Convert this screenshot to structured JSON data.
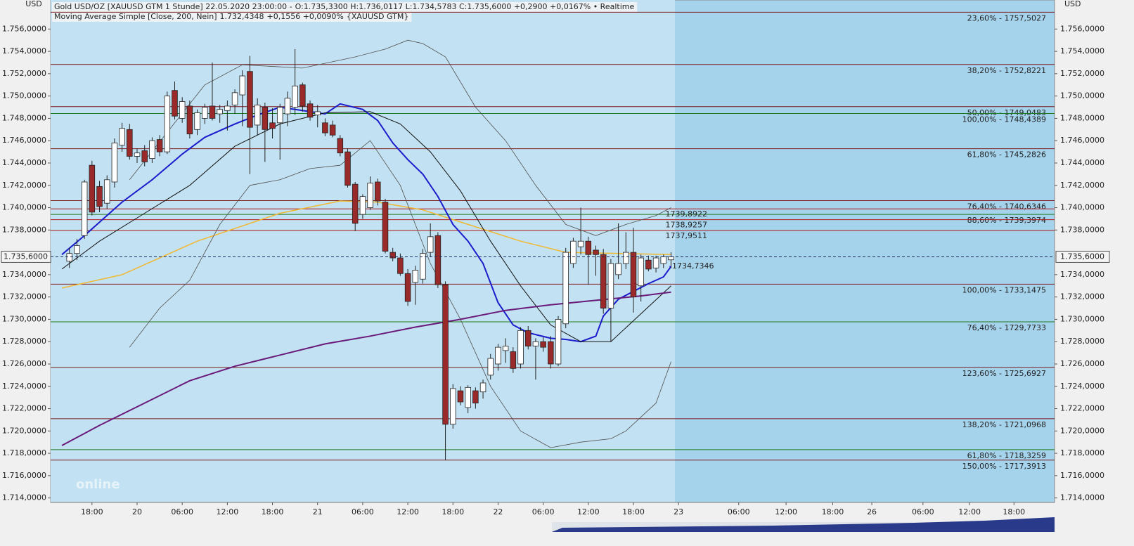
{
  "chart_data": {
    "type": "candlestick",
    "currency": "USD",
    "header": {
      "line1": [
        {
          "text": "Gold USD/OZ [XAUUSD GTM 1 Stunde] 22.05.2020 23:00:00 -",
          "color": "#202020"
        },
        {
          "text": "O:1.735,3300 H:1.736,0117 L:1.734,5783 C:1.735,6000 +0,2900 +0,0167% • Realtime",
          "color": "#1a8f1a"
        }
      ],
      "line2": [
        {
          "text": "Moving Average Simple [Close, 200, Nein]",
          "color": "#202020"
        },
        {
          "text": "1.732,4348",
          "color": "#6a1a7a"
        },
        {
          "text": "+0,1556 +0,0090%",
          "color": "#1a8f1a"
        },
        {
          "text": "{XAUUSD GTM}",
          "color": "#6a1a7a"
        }
      ]
    },
    "logo": "online",
    "xlim": [
      -1.5,
      132
    ],
    "ylim": [
      1713.6,
      1758.6
    ],
    "yticks": [
      {
        "value": 1714,
        "label": "1.714,0000"
      },
      {
        "value": 1716,
        "label": "1.716,0000"
      },
      {
        "value": 1718,
        "label": "1.718,0000"
      },
      {
        "value": 1720,
        "label": "1.720,0000"
      },
      {
        "value": 1722,
        "label": "1.722,0000"
      },
      {
        "value": 1724,
        "label": "1.724,0000"
      },
      {
        "value": 1726,
        "label": "1.726,0000"
      },
      {
        "value": 1728,
        "label": "1.728,0000"
      },
      {
        "value": 1730,
        "label": "1.730,0000"
      },
      {
        "value": 1732,
        "label": "1.732,0000"
      },
      {
        "value": 1734,
        "label": "1.734,0000"
      },
      {
        "value": 1738,
        "label": "1.738,0000"
      },
      {
        "value": 1740,
        "label": "1.740,0000"
      },
      {
        "value": 1742,
        "label": "1.742,0000"
      },
      {
        "value": 1744,
        "label": "1.744,0000"
      },
      {
        "value": 1746,
        "label": "1.746,0000"
      },
      {
        "value": 1748,
        "label": "1.748,0000"
      },
      {
        "value": 1750,
        "label": "1.750,0000"
      },
      {
        "value": 1752,
        "label": "1.752,0000"
      },
      {
        "value": 1754,
        "label": "1.754,0000"
      },
      {
        "value": 1756,
        "label": "1.756,0000"
      }
    ],
    "xticks": [
      {
        "value": 4,
        "label": "18:00"
      },
      {
        "value": 10,
        "label": "20"
      },
      {
        "value": 16,
        "label": "06:00"
      },
      {
        "value": 22,
        "label": "12:00"
      },
      {
        "value": 28,
        "label": "18:00"
      },
      {
        "value": 34,
        "label": "21"
      },
      {
        "value": 40,
        "label": "06:00"
      },
      {
        "value": 46,
        "label": "12:00"
      },
      {
        "value": 52,
        "label": "18:00"
      },
      {
        "value": 58,
        "label": "22"
      },
      {
        "value": 64,
        "label": "06:00"
      },
      {
        "value": 70,
        "label": "12:00"
      },
      {
        "value": 76,
        "label": "18:00"
      },
      {
        "value": 82,
        "label": "23"
      },
      {
        "value": 90,
        "label": "06:00"
      },
      {
        "value": 96.3,
        "label": "12:00"
      },
      {
        "value": 102.5,
        "label": "18:00"
      },
      {
        "value": 107.7,
        "label": "26"
      },
      {
        "value": 114.5,
        "label": "06:00"
      },
      {
        "value": 120.7,
        "label": "12:00"
      },
      {
        "value": 126.6,
        "label": "18:00"
      }
    ],
    "up_color": "#ffffff",
    "down_color": "#9a2a2a",
    "x": [
      1,
      2,
      3,
      4,
      5,
      6,
      7,
      8,
      9,
      10,
      11,
      12,
      13,
      14,
      15,
      16,
      17,
      18,
      19,
      20,
      21,
      22,
      23,
      24,
      25,
      26,
      27,
      28,
      29,
      30,
      31,
      32,
      33,
      34,
      35,
      36,
      37,
      38,
      39,
      40,
      41,
      42,
      43,
      44,
      45,
      46,
      47,
      48,
      49,
      50,
      51,
      52,
      53,
      54,
      55,
      56,
      57,
      58,
      59,
      60,
      61,
      62,
      63,
      64,
      65,
      66,
      67,
      68,
      69,
      70,
      71,
      72,
      73,
      74,
      75,
      76,
      77,
      78,
      79,
      80,
      81
    ],
    "open": [
      1735.2,
      1735.9,
      1737.5,
      1743.8,
      1741.9,
      1740.4,
      1742.3,
      1745.6,
      1747.0,
      1744.6,
      1745.1,
      1744.4,
      1746.1,
      1745.0,
      1750.5,
      1748.0,
      1749.1,
      1747.0,
      1748.0,
      1749.1,
      1748.4,
      1748.7,
      1749.2,
      1750.1,
      1752.2,
      1747.4,
      1749.0,
      1747.6,
      1747.6,
      1748.4,
      1749.0,
      1751.0,
      1749.3,
      1748.3,
      1747.6,
      1747.4,
      1746.2,
      1745.0,
      1742.1,
      1739.4,
      1740.0,
      1742.3,
      1740.5,
      1736.0,
      1735.5,
      1734.1,
      1733.3,
      1733.6,
      1736.0,
      1737.5,
      1733.1,
      1720.6,
      1723.6,
      1722.1,
      1723.6,
      1723.5,
      1725.0,
      1726.0,
      1727.2,
      1727.1,
      1726.0,
      1729.0,
      1727.6,
      1728.0,
      1728.0,
      1726.0,
      1729.6,
      1735.0,
      1736.5,
      1737.0,
      1736.2,
      1735.8,
      1731.0,
      1734.0,
      1735.0,
      1736.0,
      1733.0,
      1735.3,
      1734.6,
      1735.0,
      1735.33
    ],
    "high": [
      1736.4,
      1737.2,
      1742.5,
      1744.2,
      1742.4,
      1742.9,
      1746.2,
      1747.6,
      1747.5,
      1745.3,
      1745.6,
      1746.3,
      1746.5,
      1750.4,
      1751.3,
      1749.9,
      1749.6,
      1748.8,
      1749.3,
      1753.0,
      1749.2,
      1749.6,
      1750.6,
      1752.3,
      1753.6,
      1749.8,
      1749.4,
      1748.9,
      1749.3,
      1750.4,
      1754.2,
      1751.2,
      1749.6,
      1749.2,
      1748.0,
      1747.8,
      1746.5,
      1745.3,
      1742.3,
      1741.2,
      1742.8,
      1742.6,
      1740.8,
      1736.4,
      1735.9,
      1734.5,
      1734.8,
      1736.3,
      1738.6,
      1737.8,
      1733.4,
      1724.2,
      1724.0,
      1724.1,
      1723.9,
      1724.6,
      1726.9,
      1727.8,
      1728.3,
      1727.5,
      1729.3,
      1729.4,
      1728.3,
      1728.4,
      1728.5,
      1730.3,
      1736.4,
      1737.3,
      1740.0,
      1737.4,
      1736.6,
      1736.3,
      1735.4,
      1738.6,
      1737.8,
      1738.2,
      1735.8,
      1735.7,
      1735.7,
      1735.8,
      1736.0117
    ],
    "low": [
      1734.6,
      1735.3,
      1737.2,
      1739.3,
      1739.6,
      1739.9,
      1741.8,
      1745.0,
      1744.3,
      1744.0,
      1743.7,
      1744.0,
      1744.6,
      1744.8,
      1747.9,
      1747.6,
      1746.2,
      1746.5,
      1747.5,
      1747.8,
      1747.6,
      1746.9,
      1748.4,
      1747.3,
      1743.0,
      1746.5,
      1744.1,
      1746.2,
      1744.3,
      1747.3,
      1748.3,
      1748.6,
      1747.8,
      1747.2,
      1746.4,
      1746.3,
      1744.6,
      1741.8,
      1737.9,
      1739.0,
      1739.8,
      1740.2,
      1735.9,
      1735.2,
      1733.9,
      1731.2,
      1731.3,
      1733.2,
      1735.6,
      1732.8,
      1717.4,
      1720.2,
      1722.3,
      1721.6,
      1722.0,
      1722.9,
      1724.6,
      1725.4,
      1726.1,
      1725.2,
      1725.6,
      1727.3,
      1724.6,
      1727.1,
      1725.6,
      1725.8,
      1729.2,
      1734.6,
      1735.8,
      1733.1,
      1733.9,
      1730.5,
      1728.0,
      1733.6,
      1734.5,
      1730.6,
      1731.6,
      1734.3,
      1734.2,
      1734.6,
      1734.5783
    ],
    "close": [
      1735.9,
      1736.6,
      1742.3,
      1739.6,
      1740.1,
      1742.5,
      1745.8,
      1747.1,
      1744.6,
      1744.9,
      1744.1,
      1746.0,
      1745.0,
      1750.0,
      1748.2,
      1749.5,
      1746.6,
      1748.5,
      1749.0,
      1748.0,
      1748.8,
      1749.1,
      1750.3,
      1751.8,
      1747.2,
      1749.2,
      1747.0,
      1747.1,
      1749.0,
      1749.8,
      1750.9,
      1749.1,
      1748.1,
      1748.6,
      1746.7,
      1746.5,
      1744.9,
      1742.0,
      1738.6,
      1741.0,
      1742.2,
      1740.6,
      1736.1,
      1735.5,
      1734.1,
      1731.6,
      1734.4,
      1735.9,
      1737.4,
      1733.1,
      1720.6,
      1723.8,
      1722.6,
      1723.9,
      1722.5,
      1724.3,
      1726.5,
      1727.5,
      1727.6,
      1725.6,
      1729.0,
      1727.6,
      1728.0,
      1727.5,
      1726.0,
      1730.0,
      1736.0,
      1737.0,
      1737.0,
      1735.8,
      1735.8,
      1731.0,
      1735.0,
      1735.0,
      1736.0,
      1732.0,
      1735.5,
      1734.5,
      1735.5,
      1735.6,
      1735.6
    ],
    "lines": [
      {
        "color": "#f2b830",
        "width": 1.5,
        "x": [
          0,
          8,
          18,
          29,
          37,
          42,
          48,
          54,
          61,
          67,
          81
        ],
        "values": [
          1732.8,
          1734.0,
          1737.0,
          1739.5,
          1740.6,
          1740.5,
          1739.8,
          1738.5,
          1737.0,
          1736.0,
          1735.8
        ]
      },
      {
        "color": "#1c1ccc",
        "width": 2,
        "x": [
          0,
          3,
          8,
          12,
          16,
          19,
          23,
          26,
          29,
          33,
          35,
          37,
          40,
          42,
          44,
          46,
          48,
          50,
          52,
          54,
          56,
          58,
          60,
          62,
          65,
          67,
          69,
          71,
          72,
          74,
          76,
          78,
          80,
          81
        ],
        "values": [
          1735.8,
          1737.5,
          1740.5,
          1742.5,
          1744.8,
          1746.3,
          1747.5,
          1748.3,
          1749.0,
          1748.6,
          1748.4,
          1749.3,
          1748.8,
          1747.8,
          1745.8,
          1744.3,
          1743.0,
          1741.0,
          1738.5,
          1737.0,
          1735.0,
          1731.5,
          1729.5,
          1728.8,
          1728.3,
          1728.2,
          1728.0,
          1728.5,
          1730.3,
          1731.8,
          1732.5,
          1733.2,
          1733.8,
          1734.7346
        ]
      },
      {
        "color": "#111111",
        "width": 1,
        "x": [
          0,
          5,
          11,
          17,
          23,
          29,
          35,
          41,
          45,
          49,
          53,
          57,
          61,
          65,
          69,
          73,
          77,
          81
        ],
        "values": [
          1734.5,
          1737.0,
          1739.5,
          1742.0,
          1745.5,
          1747.5,
          1748.5,
          1748.6,
          1747.5,
          1745.0,
          1741.5,
          1737.0,
          1733.0,
          1729.5,
          1728.0,
          1728.0,
          1730.5,
          1733.0
        ]
      },
      {
        "color": "#6a1a7a",
        "width": 2,
        "x": [
          0,
          5,
          11,
          17,
          23,
          29,
          35,
          41,
          47,
          53,
          59,
          65,
          71,
          77,
          81
        ],
        "values": [
          1718.7,
          1720.5,
          1722.5,
          1724.5,
          1725.8,
          1726.8,
          1727.8,
          1728.5,
          1729.3,
          1730.0,
          1730.8,
          1731.3,
          1731.7,
          1732.1,
          1732.4348
        ]
      },
      {
        "color": "#505050",
        "width": 0.8,
        "x": [
          9,
          19,
          24,
          32,
          39,
          43,
          46,
          48,
          51,
          55,
          59,
          63,
          67,
          71,
          75,
          79,
          81
        ],
        "values": [
          1742.5,
          1751.0,
          1752.8,
          1752.5,
          1753.5,
          1754.2,
          1755.0,
          1754.7,
          1753.5,
          1749.0,
          1746.0,
          1742.0,
          1738.5,
          1737.5,
          1738.5,
          1739.3,
          1740.0
        ]
      },
      {
        "color": "#505050",
        "width": 0.8,
        "x": [
          9,
          13,
          17,
          21,
          25,
          29,
          33,
          37,
          41,
          45,
          49,
          53,
          57,
          61,
          65,
          69,
          73,
          75,
          79,
          81
        ],
        "values": [
          1727.5,
          1731.0,
          1733.5,
          1738.5,
          1742.0,
          1742.5,
          1743.5,
          1743.8,
          1746.0,
          1742.0,
          1735.0,
          1730.0,
          1724.0,
          1720.0,
          1718.5,
          1719.0,
          1719.3,
          1720.0,
          1722.5,
          1726.2
        ]
      }
    ],
    "fib_levels": [
      {
        "value": 1757.5027,
        "label": "23,60% - 1757,5027",
        "color": "#7a1c1c"
      },
      {
        "value": 1752.8221,
        "label": "38,20% - 1752,8221",
        "color": "#7a1c1c"
      },
      {
        "value": 1749.0483,
        "label": "50,00% - 1749,0483",
        "color": "#7a1c1c"
      },
      {
        "value": 1748.4389,
        "label": "100,00% - 1748,4389",
        "color": "#1e7a1e"
      },
      {
        "value": 1745.2826,
        "label": "61,80% - 1745,2826",
        "color": "#7a1c1c"
      },
      {
        "value": 1740.6346,
        "label": "76,40% - 1740,6346",
        "color": "#7a1c1c"
      },
      {
        "value": 1739.3974,
        "label": "88,60% - 1739,3974",
        "color": "#1e7a1e"
      },
      {
        "value": 1733.1475,
        "label": "100,00% - 1733,1475",
        "color": "#7a1c1c"
      },
      {
        "value": 1729.7733,
        "label": "76,40% - 1729,7733",
        "color": "#1e7a1e"
      },
      {
        "value": 1725.6927,
        "label": "123,60% - 1725,6927",
        "color": "#7a1c1c"
      },
      {
        "value": 1721.0968,
        "label": "138,20% - 1721,0968",
        "color": "#7a1c1c"
      },
      {
        "value": 1718.3259,
        "label": "61,80% - 1718,3259",
        "color": "#1e7a1e"
      },
      {
        "value": 1717.3913,
        "label": "150,00% - 1717,3913",
        "color": "#7a1c1c"
      }
    ],
    "levels": [
      {
        "value": 1739.8922,
        "label": "1739,8922",
        "color": "#b01818"
      },
      {
        "value": 1738.9257,
        "label": "1738,9257",
        "color": "#b01818"
      },
      {
        "value": 1737.9511,
        "label": "1737,9511",
        "color": "#b01818"
      }
    ],
    "ma_label": {
      "value": 1734.7346,
      "label": "1734,7346",
      "color": "#1c1ccc"
    },
    "last_price": {
      "value": 1735.6,
      "label": "1.735,6000"
    }
  }
}
